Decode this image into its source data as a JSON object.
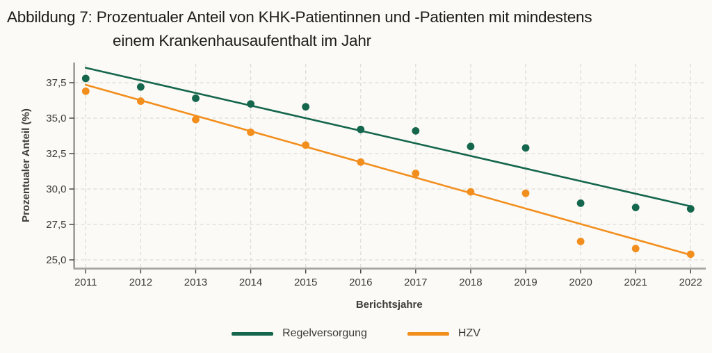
{
  "figure": {
    "title_line1": "Abbildung 7: Prozentualer Anteil von KHK-Patientinnen und -Patienten mit mindestens",
    "title_line2": "einem Krankenhausaufenthalt im Jahr"
  },
  "colors": {
    "regelversorgung": "#14664D",
    "hzv": "#F28E1D",
    "grid": "#DCDCD8",
    "x_axis": "#A3A3A1",
    "y_axis": "#3C3C3B",
    "tick_text": "#3C3C3B",
    "background": "#FBFAF6"
  },
  "chart_data": {
    "type": "scatter",
    "x": [
      2011,
      2012,
      2013,
      2014,
      2015,
      2016,
      2017,
      2018,
      2019,
      2020,
      2021,
      2022
    ],
    "series": [
      {
        "name": "Regelversorgung",
        "color": "#14664D",
        "values": [
          37.8,
          37.2,
          36.4,
          36.0,
          35.8,
          34.2,
          34.1,
          33.0,
          32.9,
          29.0,
          28.7,
          28.6
        ],
        "trend": {
          "start_x": 2011,
          "start_y": 38.55,
          "end_x": 2022,
          "end_y": 28.78
        }
      },
      {
        "name": "HZV",
        "color": "#F28E1D",
        "values": [
          36.9,
          36.2,
          34.9,
          34.0,
          33.1,
          31.9,
          31.1,
          29.8,
          29.7,
          26.3,
          25.8,
          25.4
        ],
        "trend": {
          "start_x": 2011,
          "start_y": 37.35,
          "end_x": 2022,
          "end_y": 25.35
        }
      }
    ],
    "xlabel": "Berichtsjahre",
    "ylabel": "Prozentualer Anteil (%)",
    "ylim": [
      24.3,
      38.9
    ],
    "yticks": [
      25.0,
      27.5,
      30.0,
      32.5,
      35.0,
      37.5
    ],
    "ytick_labels": [
      "25,0",
      "27,5",
      "30,0",
      "32,5",
      "35,0",
      "37,5"
    ],
    "xtick_labels": [
      "2011",
      "2012",
      "2013",
      "2014",
      "2015",
      "2016",
      "2017",
      "2018",
      "2019",
      "2020",
      "2021",
      "2022"
    ],
    "grid": true,
    "grid_style": "dashed",
    "legend_position": "bottom"
  }
}
